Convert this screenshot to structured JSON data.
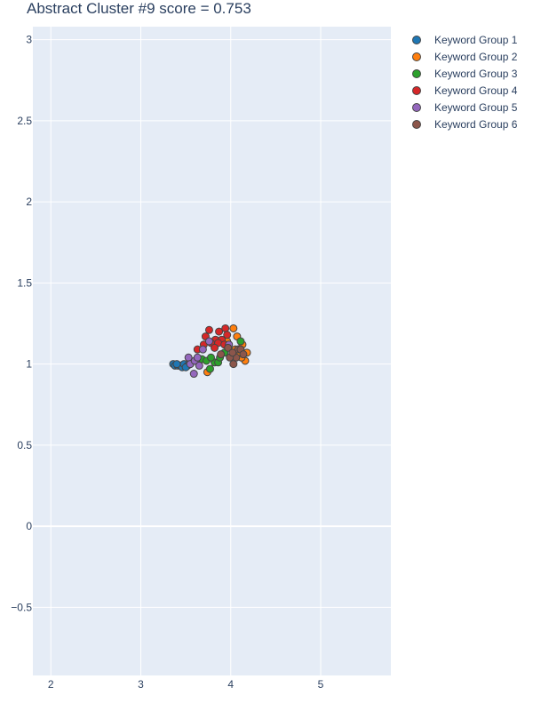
{
  "chart_data": {
    "type": "scatter",
    "title": "Abstract Cluster #9 score = 0.753",
    "xlabel": "",
    "ylabel": "",
    "xlim": [
      1.8,
      5.78
    ],
    "ylim": [
      -0.92,
      3.08
    ],
    "xticks": [
      2,
      3,
      4,
      5
    ],
    "yticks": [
      -0.5,
      0,
      0.5,
      1,
      1.5,
      2,
      2.5,
      3
    ],
    "ytick_labels": [
      "−0.5",
      "0",
      "0.5",
      "1",
      "1.5",
      "2",
      "2.5",
      "3"
    ],
    "grid": true,
    "legend_position": "top-right",
    "series": [
      {
        "name": "Keyword Group 1",
        "color": "#1f77b4",
        "points": [
          [
            3.36,
            1.0
          ],
          [
            3.38,
            0.99
          ],
          [
            3.41,
            0.99
          ],
          [
            3.44,
            0.99
          ],
          [
            3.46,
            0.98
          ],
          [
            3.48,
            1.0
          ],
          [
            3.52,
            0.99
          ],
          [
            3.55,
            1.0
          ],
          [
            3.4,
            1.0
          ],
          [
            3.5,
            0.98
          ]
        ]
      },
      {
        "name": "Keyword Group 2",
        "color": "#ff7f0e",
        "points": [
          [
            4.03,
            1.22
          ],
          [
            4.07,
            1.17
          ],
          [
            4.13,
            1.12
          ],
          [
            4.18,
            1.07
          ],
          [
            4.16,
            1.02
          ],
          [
            4.12,
            1.04
          ],
          [
            3.74,
            0.95
          ],
          [
            4.05,
            1.09
          ],
          [
            3.96,
            1.14
          ],
          [
            4.1,
            1.07
          ]
        ]
      },
      {
        "name": "Keyword Group 3",
        "color": "#2ca02c",
        "points": [
          [
            3.68,
            1.03
          ],
          [
            3.77,
            0.97
          ],
          [
            3.82,
            1.01
          ],
          [
            3.86,
            1.01
          ],
          [
            4.11,
            1.14
          ],
          [
            3.73,
            1.02
          ],
          [
            3.88,
            1.04
          ],
          [
            3.93,
            1.07
          ],
          [
            3.78,
            1.04
          ]
        ]
      },
      {
        "name": "Keyword Group 4",
        "color": "#d62728",
        "points": [
          [
            3.76,
            1.21
          ],
          [
            3.87,
            1.2
          ],
          [
            3.94,
            1.22
          ],
          [
            3.72,
            1.17
          ],
          [
            3.83,
            1.15
          ],
          [
            3.9,
            1.15
          ],
          [
            3.96,
            1.18
          ],
          [
            3.86,
            1.13
          ],
          [
            3.78,
            1.13
          ],
          [
            3.63,
            1.09
          ],
          [
            3.93,
            1.12
          ],
          [
            3.7,
            1.12
          ],
          [
            3.82,
            1.1
          ]
        ]
      },
      {
        "name": "Keyword Group 5",
        "color": "#9467bd",
        "points": [
          [
            3.53,
            1.04
          ],
          [
            3.55,
            1.0
          ],
          [
            3.59,
            0.94
          ],
          [
            3.6,
            1.02
          ],
          [
            3.65,
            0.99
          ],
          [
            3.69,
            1.09
          ],
          [
            3.76,
            1.14
          ],
          [
            3.63,
            1.04
          ],
          [
            3.98,
            1.12
          ]
        ]
      },
      {
        "name": "Keyword Group 6",
        "color": "#8c564b",
        "points": [
          [
            3.89,
            1.06
          ],
          [
            3.97,
            1.1
          ],
          [
            4.03,
            1.0
          ],
          [
            4.06,
            1.04
          ],
          [
            4.08,
            1.09
          ],
          [
            4.11,
            1.09
          ],
          [
            4.14,
            1.06
          ],
          [
            3.99,
            1.04
          ],
          [
            4.02,
            1.07
          ]
        ]
      }
    ]
  }
}
